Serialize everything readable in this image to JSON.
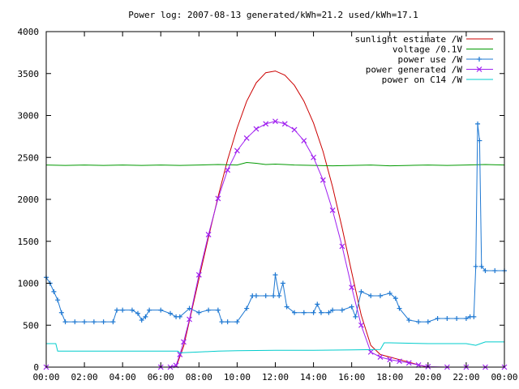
{
  "chart_data": {
    "type": "line",
    "title": "Power log: 2007-08-13 generated/kWh=21.2 used/kWh=17.1",
    "xlabel": "",
    "ylabel": "",
    "xlim": [
      0,
      24
    ],
    "ylim": [
      0,
      4000
    ],
    "xticks": [
      {
        "v": 0,
        "label": "00:00"
      },
      {
        "v": 2,
        "label": "02:00"
      },
      {
        "v": 4,
        "label": "04:00"
      },
      {
        "v": 6,
        "label": "06:00"
      },
      {
        "v": 8,
        "label": "08:00"
      },
      {
        "v": 10,
        "label": "10:00"
      },
      {
        "v": 12,
        "label": "12:00"
      },
      {
        "v": 14,
        "label": "14:00"
      },
      {
        "v": 16,
        "label": "16:00"
      },
      {
        "v": 18,
        "label": "18:00"
      },
      {
        "v": 20,
        "label": "20:00"
      },
      {
        "v": 22,
        "label": "22:00"
      },
      {
        "v": 24,
        "label": "00:00"
      }
    ],
    "yticks": [
      {
        "v": 0,
        "label": "0"
      },
      {
        "v": 500,
        "label": "500"
      },
      {
        "v": 1000,
        "label": "1000"
      },
      {
        "v": 1500,
        "label": "1500"
      },
      {
        "v": 2000,
        "label": "2000"
      },
      {
        "v": 2500,
        "label": "2500"
      },
      {
        "v": 3000,
        "label": "3000"
      },
      {
        "v": 3500,
        "label": "3500"
      },
      {
        "v": 4000,
        "label": "4000"
      }
    ],
    "grid": false,
    "legend_position": "top-right",
    "series": [
      {
        "name": "sunlight estimate /W",
        "color": "#cc0000",
        "style": "line",
        "x": [
          6.8,
          7.2,
          7.6,
          8.0,
          8.5,
          9.0,
          9.5,
          10.0,
          10.5,
          11.0,
          11.5,
          12.0,
          12.5,
          13.0,
          13.5,
          14.0,
          14.5,
          15.0,
          15.5,
          16.0,
          16.5,
          17.0,
          17.5,
          18.0,
          18.5,
          19.0,
          19.5,
          20.0
        ],
        "y": [
          0,
          250,
          650,
          1050,
          1550,
          2030,
          2470,
          2850,
          3170,
          3390,
          3510,
          3530,
          3480,
          3360,
          3170,
          2910,
          2570,
          2150,
          1660,
          1130,
          620,
          260,
          150,
          120,
          90,
          60,
          25,
          0
        ]
      },
      {
        "name": "voltage /0.1V",
        "color": "#009900",
        "style": "line",
        "x": [
          0,
          1,
          2,
          3,
          4,
          5,
          6,
          7,
          8,
          9,
          10,
          10.5,
          11,
          11.5,
          12,
          12.5,
          13,
          14,
          15,
          16,
          17,
          18,
          19,
          20,
          21,
          22,
          23,
          24
        ],
        "y": [
          2410,
          2405,
          2410,
          2405,
          2410,
          2405,
          2410,
          2405,
          2410,
          2415,
          2410,
          2440,
          2430,
          2415,
          2420,
          2415,
          2410,
          2405,
          2400,
          2405,
          2410,
          2400,
          2405,
          2410,
          2405,
          2410,
          2415,
          2410
        ]
      },
      {
        "name": "power use /W",
        "color": "#1e78d2",
        "style": "linepoints",
        "x": [
          0,
          0.2,
          0.4,
          0.6,
          0.8,
          1.0,
          1.5,
          2.0,
          2.5,
          3.0,
          3.5,
          3.7,
          4.0,
          4.5,
          4.8,
          5.0,
          5.2,
          5.4,
          6.0,
          6.5,
          6.8,
          7.0,
          7.5,
          8.0,
          8.5,
          9.0,
          9.2,
          9.5,
          10.0,
          10.5,
          10.8,
          11.0,
          11.5,
          11.9,
          12.0,
          12.2,
          12.4,
          12.6,
          13.0,
          13.5,
          14.0,
          14.2,
          14.4,
          14.8,
          15.0,
          15.5,
          16.0,
          16.2,
          16.5,
          17.0,
          17.5,
          18.0,
          18.3,
          18.5,
          19.0,
          19.5,
          20.0,
          20.5,
          21.0,
          21.5,
          22.0,
          22.2,
          22.4,
          22.5,
          22.6,
          22.7,
          22.8,
          23.0,
          23.5,
          24.0
        ],
        "y": [
          1070,
          1000,
          900,
          800,
          650,
          540,
          540,
          540,
          540,
          540,
          540,
          680,
          680,
          680,
          640,
          560,
          600,
          680,
          680,
          640,
          600,
          600,
          700,
          650,
          680,
          680,
          540,
          540,
          540,
          700,
          850,
          850,
          850,
          850,
          1100,
          850,
          1000,
          720,
          650,
          650,
          650,
          750,
          650,
          650,
          680,
          680,
          720,
          600,
          900,
          850,
          850,
          880,
          820,
          700,
          560,
          540,
          540,
          580,
          580,
          580,
          580,
          600,
          600,
          1200,
          2900,
          2700,
          1200,
          1150,
          1150,
          1150
        ]
      },
      {
        "name": "power generated /W",
        "color": "#a020f0",
        "style": "linepoints",
        "x": [
          0,
          6.0,
          6.5,
          6.8,
          7.0,
          7.2,
          7.5,
          8.0,
          8.5,
          9.0,
          9.5,
          10.0,
          10.5,
          11.0,
          11.5,
          12.0,
          12.5,
          13.0,
          13.5,
          14.0,
          14.5,
          15.0,
          15.5,
          16.0,
          16.5,
          17.0,
          17.5,
          18.0,
          18.5,
          19.0,
          19.5,
          20.0,
          21.0,
          22.0,
          23.0,
          24.0
        ],
        "y": [
          0,
          0,
          0,
          20,
          150,
          300,
          570,
          1100,
          1580,
          2010,
          2350,
          2580,
          2730,
          2840,
          2900,
          2930,
          2900,
          2830,
          2700,
          2500,
          2230,
          1870,
          1440,
          950,
          500,
          180,
          120,
          90,
          70,
          50,
          25,
          5,
          0,
          0,
          0,
          0
        ]
      },
      {
        "name": "power on C14 /W",
        "color": "#00cccc",
        "style": "line",
        "x": [
          0,
          0.5,
          0.6,
          2,
          4,
          6,
          6.9,
          7.0,
          9,
          10,
          12,
          13,
          14,
          16,
          17.5,
          17.7,
          18,
          20,
          22,
          22.5,
          23,
          24
        ],
        "y": [
          280,
          280,
          190,
          190,
          190,
          190,
          190,
          170,
          190,
          195,
          200,
          200,
          200,
          205,
          210,
          290,
          290,
          280,
          280,
          260,
          300,
          300
        ]
      }
    ]
  }
}
